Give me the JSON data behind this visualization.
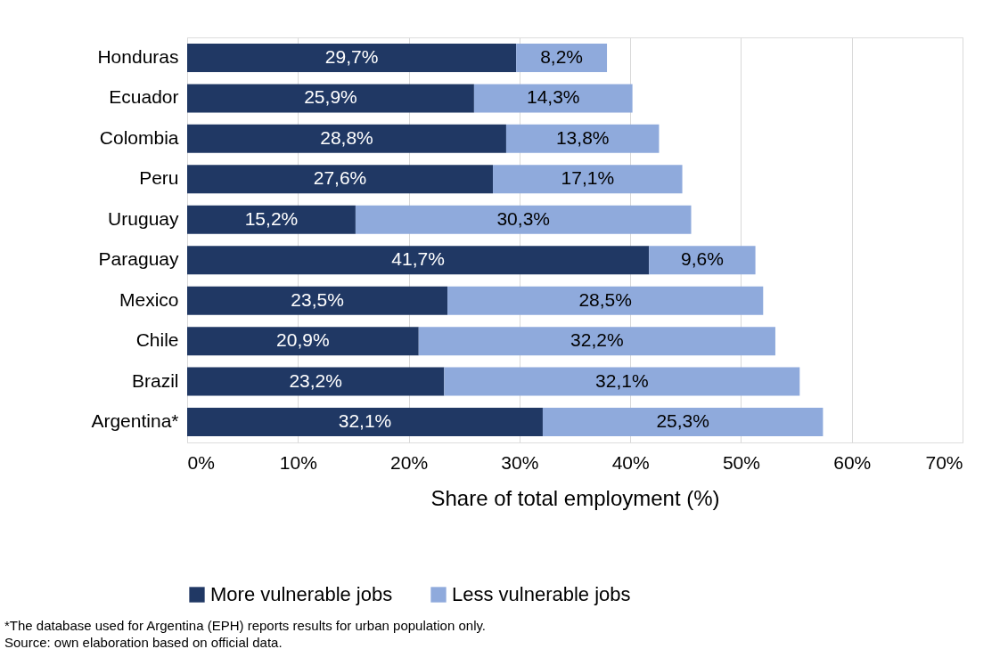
{
  "chart_data": {
    "type": "bar",
    "orientation": "horizontal",
    "stacked": true,
    "categories": [
      "Honduras",
      "Ecuador",
      "Colombia",
      "Peru",
      "Uruguay",
      "Paraguay",
      "Mexico",
      "Chile",
      "Brazil",
      "Argentina*"
    ],
    "series": [
      {
        "name": "More vulnerable jobs",
        "color": "#203864",
        "values": [
          29.7,
          25.9,
          28.8,
          27.6,
          15.2,
          41.7,
          23.5,
          20.9,
          23.2,
          32.1
        ],
        "value_labels": [
          "29,7%",
          "25,9%",
          "28,8%",
          "27,6%",
          "15,2%",
          "41,7%",
          "23,5%",
          "20,9%",
          "23,2%",
          "32,1%"
        ]
      },
      {
        "name": "Less vulnerable jobs",
        "color": "#8faadc",
        "values": [
          8.2,
          14.3,
          13.8,
          17.1,
          30.3,
          9.6,
          28.5,
          32.2,
          32.1,
          25.3
        ],
        "value_labels": [
          "8,2%",
          "14,3%",
          "13,8%",
          "17,1%",
          "30,3%",
          "9,6%",
          "28,5%",
          "32,2%",
          "32,1%",
          "25,3%"
        ]
      }
    ],
    "xlabel": "Share of total employment (%)",
    "xlim": [
      0,
      70
    ],
    "xticks": [
      {
        "value": 0,
        "label": "0%"
      },
      {
        "value": 10,
        "label": "10%"
      },
      {
        "value": 20,
        "label": "20%"
      },
      {
        "value": 30,
        "label": "30%"
      },
      {
        "value": 40,
        "label": "40%"
      },
      {
        "value": 50,
        "label": "50%"
      },
      {
        "value": 60,
        "label": "60%"
      },
      {
        "value": 70,
        "label": "70%"
      }
    ],
    "grid": "x",
    "legend": "bottom",
    "annotations": [
      "*The database used for Argentina (EPH) reports results for urban population only.",
      "Source: own elaboration based on official data."
    ]
  }
}
